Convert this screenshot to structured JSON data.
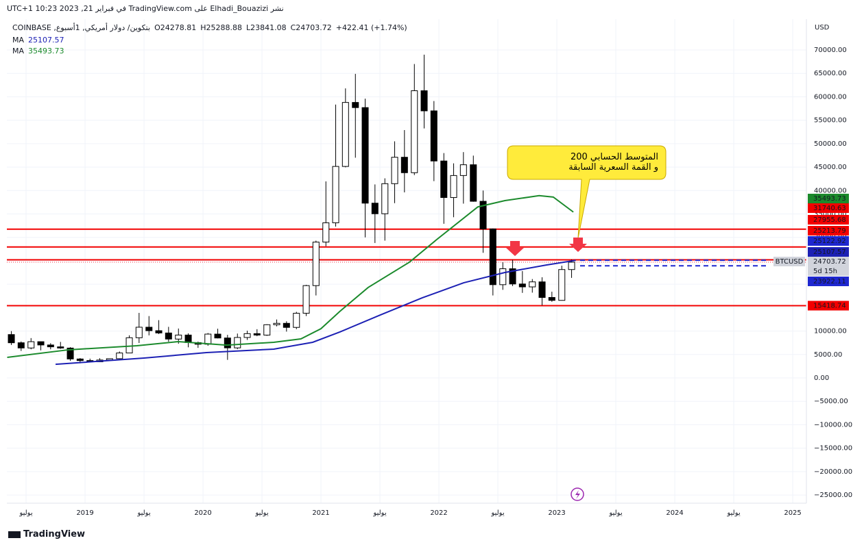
{
  "header": {
    "title": "نشر Elhadi_Bouazizi على TradingView.com في فبراير 21, 2023 10:23 UTC+1",
    "footer": "TradingView"
  },
  "chart_data": {
    "type": "candlestick",
    "symbol": "بتكوين/ دولار أمريكي, 1أسبوع, COINBASE",
    "ohlc_text": [
      "O24278.81",
      "H25288.88",
      "L23841.08",
      "C24703.72",
      "+422.41 (+1.74%)"
    ],
    "axis_unit": "USD",
    "annotation": [
      "المتوسط الحسابي 200",
      "و القمة السعرية السابقة"
    ],
    "up_color": "#ffffff",
    "down_color": "#000000",
    "x": [
      2018.375,
      2018.458,
      2018.542,
      2018.625,
      2018.708,
      2018.792,
      2018.875,
      2018.958,
      2019.042,
      2019.125,
      2019.208,
      2019.292,
      2019.375,
      2019.458,
      2019.542,
      2019.625,
      2019.708,
      2019.792,
      2019.875,
      2019.958,
      2020.042,
      2020.125,
      2020.208,
      2020.292,
      2020.375,
      2020.458,
      2020.542,
      2020.625,
      2020.708,
      2020.792,
      2020.875,
      2020.958,
      2021.042,
      2021.125,
      2021.208,
      2021.292,
      2021.375,
      2021.458,
      2021.542,
      2021.625,
      2021.708,
      2021.792,
      2021.875,
      2021.958,
      2022.042,
      2022.125,
      2022.208,
      2022.292,
      2022.375,
      2022.458,
      2022.542,
      2022.625,
      2022.708,
      2022.792,
      2022.875,
      2022.958,
      2023.042,
      2023.125
    ],
    "open": [
      9250,
      7500,
      6390,
      7730,
      7030,
      6630,
      6370,
      4040,
      3700,
      3440,
      3820,
      4100,
      5320,
      8570,
      10820,
      10080,
      9590,
      8290,
      9150,
      7540,
      7190,
      9350,
      8520,
      6410,
      8630,
      9450,
      9140,
      11350,
      11650,
      10780,
      13800,
      19700,
      28990,
      33110,
      45140,
      58800,
      57700,
      37300,
      35040,
      41460,
      47100,
      43800,
      61300,
      57000,
      46300,
      38500,
      43200,
      45500,
      37700,
      31800,
      19900,
      23300,
      20050,
      19430,
      20500,
      17170,
      16550,
      23130
    ],
    "high": [
      9990,
      7780,
      8500,
      7760,
      7410,
      7680,
      6560,
      4240,
      4110,
      4210,
      4110,
      5640,
      9090,
      13880,
      13200,
      12330,
      10900,
      10540,
      9520,
      7750,
      9580,
      10500,
      9190,
      9470,
      10080,
      10400,
      11450,
      12470,
      12080,
      14100,
      19860,
      29300,
      41950,
      58350,
      61800,
      64900,
      59600,
      41300,
      42600,
      50500,
      52900,
      67000,
      69000,
      59100,
      47990,
      45800,
      48200,
      47450,
      40000,
      31900,
      24700,
      25200,
      22800,
      21100,
      21480,
      18400,
      23960,
      25290
    ],
    "low": [
      7030,
      5750,
      6100,
      5880,
      6100,
      6200,
      3650,
      3120,
      3350,
      3380,
      3690,
      4030,
      5320,
      7450,
      9080,
      9360,
      7730,
      7300,
      6530,
      6410,
      6870,
      8430,
      3850,
      6150,
      8100,
      8900,
      8980,
      11000,
      9880,
      10410,
      13200,
      17600,
      28100,
      32300,
      44950,
      47000,
      30000,
      28800,
      29300,
      37300,
      39600,
      43300,
      53250,
      42000,
      32900,
      34300,
      37200,
      37600,
      26700,
      17600,
      18800,
      19600,
      18150,
      18200,
      15480,
      16250,
      16500,
      21350
    ],
    "close": [
      7500,
      6390,
      7730,
      7030,
      6630,
      6370,
      4040,
      3700,
      3440,
      3820,
      4100,
      5320,
      8570,
      10820,
      10080,
      9590,
      8290,
      9150,
      7540,
      7190,
      9350,
      8520,
      6410,
      8630,
      9450,
      9140,
      11350,
      11650,
      10780,
      13800,
      19700,
      28990,
      33110,
      45140,
      58800,
      57700,
      37300,
      35040,
      41460,
      47100,
      43800,
      61300,
      57000,
      46300,
      38500,
      43200,
      45500,
      37700,
      31800,
      19900,
      23300,
      20050,
      19430,
      20500,
      17170,
      16550,
      23130,
      24700
    ],
    "series": [
      {
        "name": "MA",
        "color": "#1c20b4",
        "last": 25107.57,
        "x": [
          2018.75,
          2019.5,
          2020.03,
          2020.6,
          2020.93,
          2021.16,
          2021.5,
          2021.86,
          2022.21,
          2022.56,
          2022.91,
          2023.16
        ],
        "values": [
          2900,
          4240,
          5400,
          6140,
          7600,
          9800,
          13400,
          17100,
          20300,
          22500,
          24100,
          25100
        ]
      },
      {
        "name": "MA",
        "color": "#1b8a2c",
        "last": 35493.73,
        "x": [
          2018.34,
          2018.86,
          2019.44,
          2019.79,
          2020.2,
          2020.6,
          2020.83,
          2021.0,
          2021.16,
          2021.4,
          2021.75,
          2021.98,
          2022.33,
          2022.56,
          2022.85,
          2022.97,
          2023.14
        ],
        "values": [
          4380,
          6000,
          6870,
          7750,
          7000,
          7600,
          8330,
          10500,
          14200,
          19300,
          24700,
          29500,
          36500,
          37850,
          38900,
          38600,
          35400
        ]
      }
    ],
    "levels": {
      "color": "#f20000",
      "values": [
        31740.63,
        27955.68,
        25213.79,
        15418.74
      ]
    },
    "dashed_levels": {
      "color": "#1e27d0",
      "values": [
        25122.92,
        23922.11
      ]
    },
    "price": {
      "symbol": "BTCUSD",
      "value": 24703.72,
      "countdown": "5d 15h"
    },
    "xlim": [
      2018.337,
      2025.081
    ],
    "xticks": [
      {
        "value": 2018.5,
        "label": "يوليو"
      },
      2019,
      {
        "value": 2019.5,
        "label": "يوليو"
      },
      2020,
      {
        "value": 2020.5,
        "label": "يوليو"
      },
      2021,
      {
        "value": 2021.5,
        "label": "يوليو"
      },
      2022,
      {
        "value": 2022.5,
        "label": "يوليو"
      },
      2023,
      {
        "value": 2023.5,
        "label": "يوليو"
      },
      2024,
      {
        "value": 2024.5,
        "label": "يوليو"
      },
      2025
    ],
    "ylim": [
      -26743,
      76575
    ],
    "yticks": [
      {
        "value": -25000,
        "label": "−25000.00"
      },
      {
        "value": -20000,
        "label": "−20000.00"
      },
      {
        "value": -15000,
        "label": "−15000.00"
      },
      {
        "value": -10000,
        "label": "−10000.00"
      },
      {
        "value": -5000,
        "label": "−5000.00"
      },
      {
        "value": 0,
        "label": "0.00"
      },
      {
        "value": 5000,
        "label": "5000.00"
      },
      {
        "value": 10000,
        "label": "10000.00"
      },
      {
        "value": 15000,
        "label": "15000.00"
      },
      {
        "value": 20000,
        "label": "20000.00"
      },
      {
        "value": 25000,
        "label": "25000.00"
      },
      {
        "value": 30000,
        "label": "30000.00"
      },
      {
        "value": 35000,
        "label": "35000.00"
      },
      {
        "value": 40000,
        "label": "40000.00"
      },
      {
        "value": 45000,
        "label": "45000.00"
      },
      {
        "value": 50000,
        "label": "50000.00"
      },
      {
        "value": 55000,
        "label": "55000.00"
      },
      {
        "value": 60000,
        "label": "60000.00"
      },
      {
        "value": 65000,
        "label": "65000.00"
      },
      {
        "value": 70000,
        "label": "70000.00"
      }
    ],
    "grid": true
  }
}
